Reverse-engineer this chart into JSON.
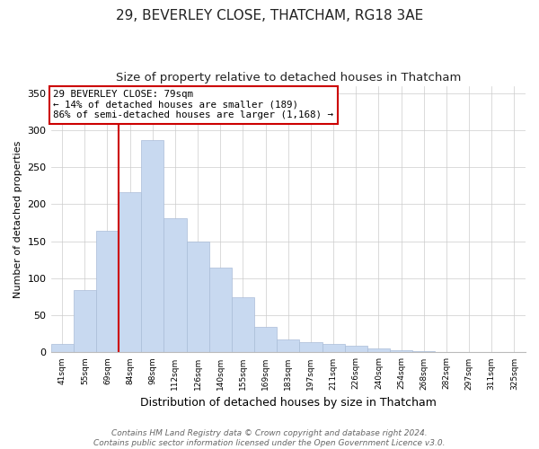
{
  "title": "29, BEVERLEY CLOSE, THATCHAM, RG18 3AE",
  "subtitle": "Size of property relative to detached houses in Thatcham",
  "xlabel": "Distribution of detached houses by size in Thatcham",
  "ylabel": "Number of detached properties",
  "bar_labels": [
    "41sqm",
    "55sqm",
    "69sqm",
    "84sqm",
    "98sqm",
    "112sqm",
    "126sqm",
    "140sqm",
    "155sqm",
    "169sqm",
    "183sqm",
    "197sqm",
    "211sqm",
    "226sqm",
    "240sqm",
    "254sqm",
    "268sqm",
    "282sqm",
    "297sqm",
    "311sqm",
    "325sqm"
  ],
  "bar_values": [
    11,
    84,
    164,
    216,
    287,
    181,
    150,
    114,
    75,
    34,
    18,
    14,
    12,
    9,
    5,
    3,
    2,
    1,
    1,
    1,
    1
  ],
  "bar_color": "#c8d9f0",
  "bar_edge_color": "#aabdd8",
  "vline_color": "#cc0000",
  "ylim": [
    0,
    360
  ],
  "yticks": [
    0,
    50,
    100,
    150,
    200,
    250,
    300,
    350
  ],
  "annotation_title": "29 BEVERLEY CLOSE: 79sqm",
  "annotation_line1": "← 14% of detached houses are smaller (189)",
  "annotation_line2": "86% of semi-detached houses are larger (1,168) →",
  "annotation_box_color": "#ffffff",
  "annotation_box_edge": "#cc0000",
  "footer_line1": "Contains HM Land Registry data © Crown copyright and database right 2024.",
  "footer_line2": "Contains public sector information licensed under the Open Government Licence v3.0.",
  "title_fontsize": 11,
  "subtitle_fontsize": 9.5,
  "xlabel_fontsize": 9,
  "ylabel_fontsize": 8,
  "footer_fontsize": 6.5
}
